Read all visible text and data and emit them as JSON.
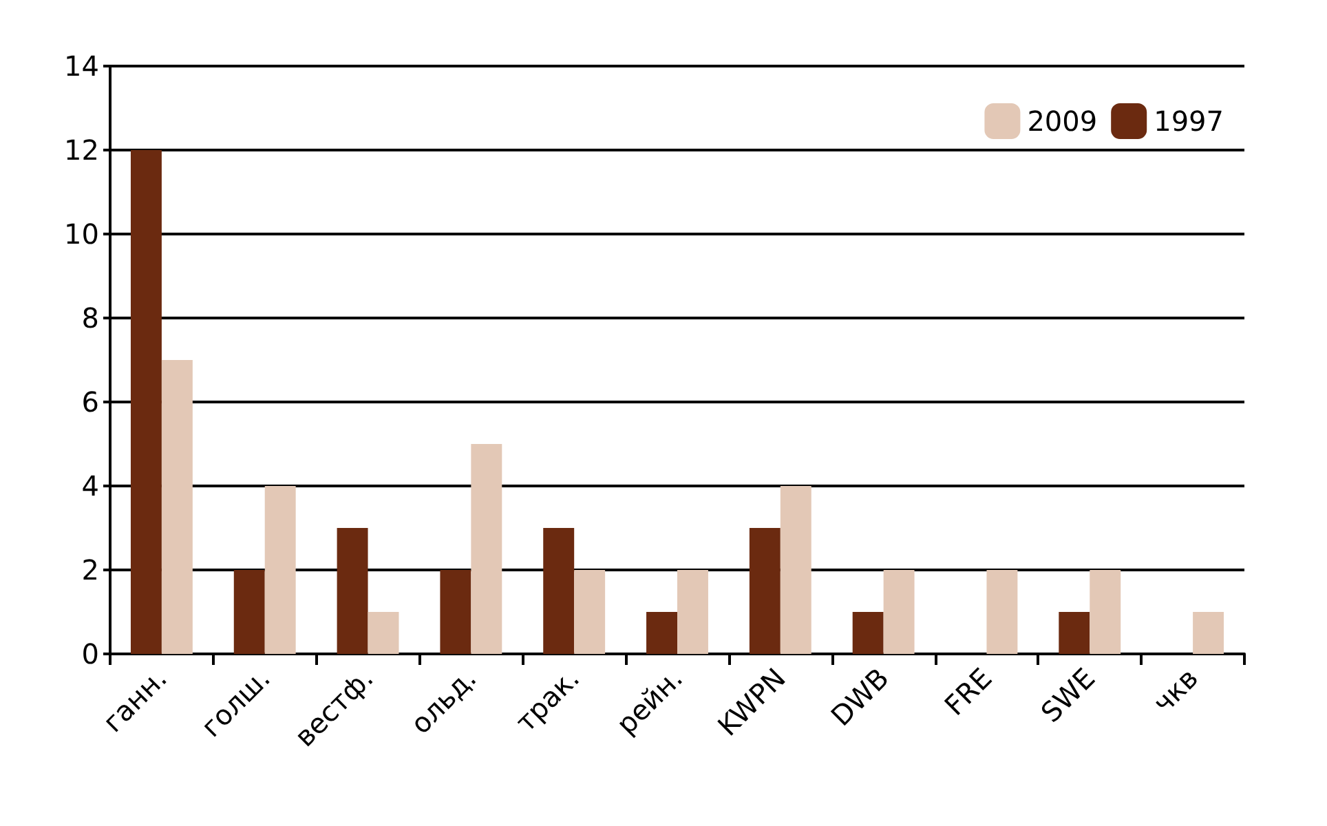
{
  "chart_data": {
    "type": "bar",
    "categories": [
      "ганн.",
      "голш.",
      "вестф.",
      "ольд.",
      "трак.",
      "рейн.",
      "KWPN",
      "DWB",
      "FRE",
      "SWE",
      "чкв"
    ],
    "series": [
      {
        "name": "1997",
        "color": "#6b2a10",
        "values": [
          12,
          2,
          3,
          2,
          3,
          1,
          3,
          1,
          0,
          1,
          0
        ]
      },
      {
        "name": "2009",
        "color": "#e3c8b6",
        "values": [
          7,
          4,
          1,
          5,
          2,
          2,
          4,
          2,
          2,
          2,
          1
        ]
      }
    ],
    "ylim": [
      0,
      14
    ],
    "yticks": [
      0,
      2,
      4,
      6,
      8,
      10,
      12,
      14
    ],
    "grid": "y",
    "legend": "top right"
  }
}
